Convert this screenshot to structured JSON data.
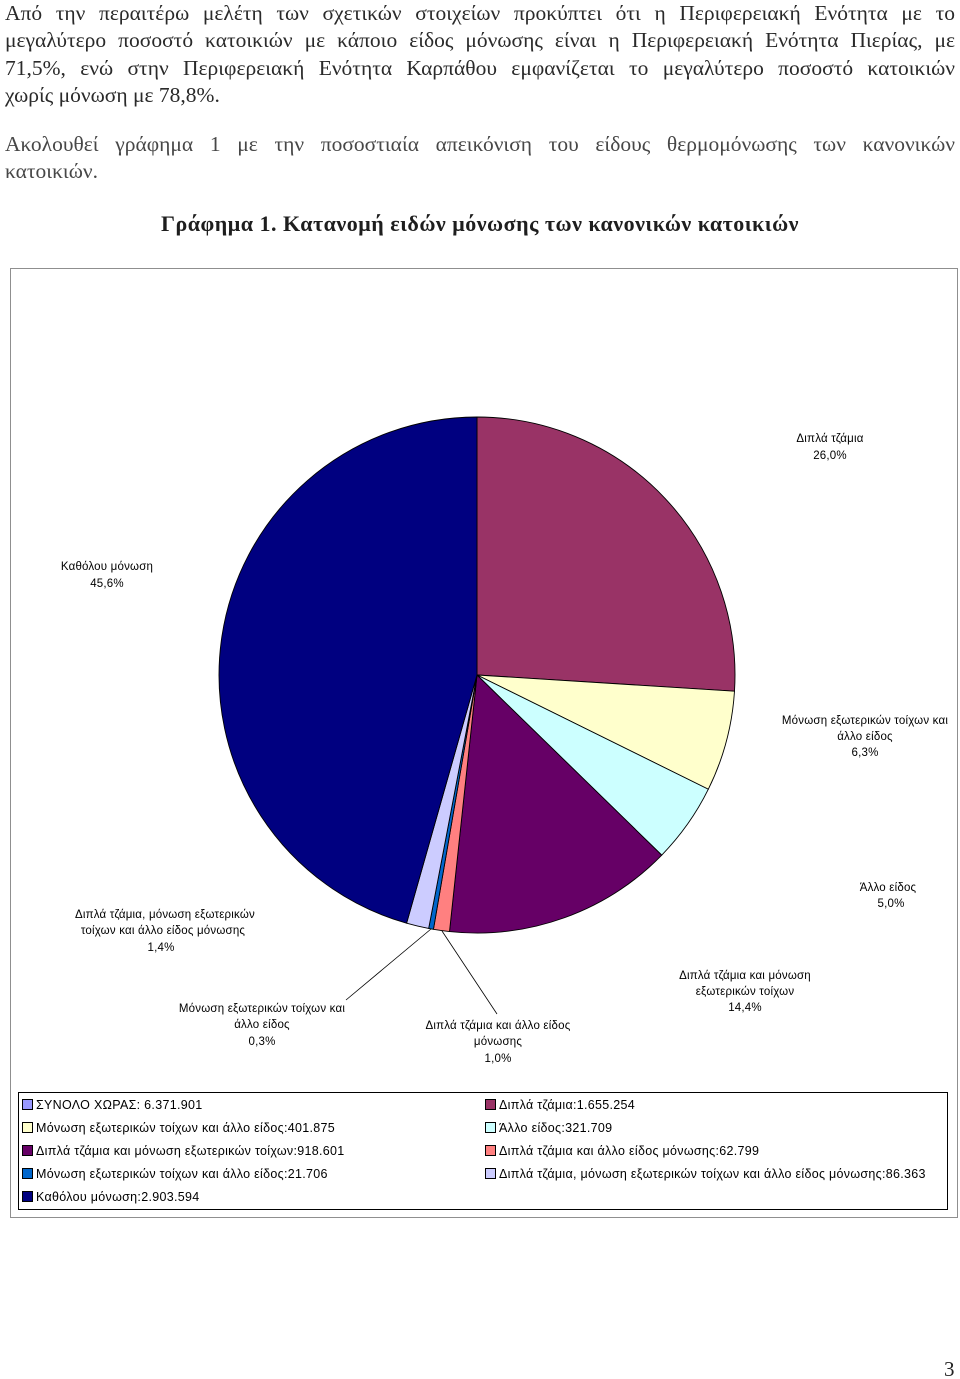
{
  "document": {
    "paragraphs": [
      {
        "lines": [
          "Από την περαιτέρω μελέτη των σχετικών στοιχείων προκύπτει ότι η Περιφερειακή Ενότητα με το",
          "μεγαλύτερο ποσοστό κατοικιών με κάποιο είδος μόνωσης είναι η Περιφερειακή Ενότητα Πιερίας, με",
          "71,5%, ενώ στην Περιφερειακή Ενότητα Καρπάθου εμφανίζεται το μεγαλύτερο ποσοστό κατοικιών",
          "χωρίς μόνωση με 78,8%."
        ]
      },
      {
        "lines": [
          "Ακολουθεί γράφημα 1 με την ποσοστιαία απεικόνιση του είδους θερμομόνωσης των κανονικών",
          "κατοικιών."
        ]
      }
    ],
    "caption": "Γράφημα 1. Κατανομή ειδών μόνωσης των κανονικών κατοικιών",
    "page_number": "3"
  },
  "chart_data": {
    "type": "pie",
    "slices": [
      {
        "label_lines": [
          "Διπλά τζάμια"
        ],
        "percent_label": "26,0%",
        "value": 26.0,
        "color": "#993366"
      },
      {
        "label_lines": [
          "Μόνωση εξωτερικών τοίχων και",
          "άλλο είδος"
        ],
        "percent_label": "6,3%",
        "value": 6.3,
        "color": "#FFFFCC"
      },
      {
        "label_lines": [
          "Άλλο είδος"
        ],
        "percent_label": "5,0%",
        "value": 5.0,
        "color": "#CCFFFF"
      },
      {
        "label_lines": [
          "Διπλά τζάμια και μόνωση",
          "εξωτερικών τοίχων"
        ],
        "percent_label": "14,4%",
        "value": 14.4,
        "color": "#660066"
      },
      {
        "label_lines": [
          "Διπλά τζάμια και άλλο είδος",
          "μόνωσης"
        ],
        "percent_label": "1,0%",
        "value": 1.0,
        "color": "#FF8080"
      },
      {
        "label_lines": [
          "Μόνωση εξωτερικών τοίχων και",
          "άλλο είδος"
        ],
        "percent_label": "0,3%",
        "value": 0.3,
        "color": "#0066CC"
      },
      {
        "label_lines": [
          "Διπλά τζάμια, μόνωση εξωτερικών",
          "τοίχων και άλλο είδος μόνωσης"
        ],
        "percent_label": "1,4%",
        "value": 1.4,
        "color": "#CCCCFF"
      },
      {
        "label_lines": [
          "Καθόλου μόνωση"
        ],
        "percent_label": "45,6%",
        "value": 45.6,
        "color": "#000080"
      }
    ],
    "legend": [
      {
        "text": "ΣΥΝΟΛΟ ΧΩΡΑΣ: 6.371.901",
        "color": "#9999FF"
      },
      {
        "text": "Διπλά τζάμια:1.655.254",
        "color": "#993366"
      },
      {
        "text": "Μόνωση εξωτερικών τοίχων και άλλο είδος:401.875",
        "color": "#FFFFCC"
      },
      {
        "text": "Άλλο είδος:321.709",
        "color": "#CCFFFF"
      },
      {
        "text": "Διπλά τζάμια και μόνωση εξωτερικών τοίχων:918.601",
        "color": "#660066"
      },
      {
        "text": "Διπλά τζάμια και άλλο είδος μόνωσης:62.799",
        "color": "#FF8080"
      },
      {
        "text": "Μόνωση εξωτερικών τοίχων και άλλο είδος:21.706",
        "color": "#0066CC"
      },
      {
        "text": "Διπλά τζάμια, μόνωση εξωτερικών τοίχων και άλλο είδος μόνωσης:86.363",
        "color": "#CCCCFF"
      },
      {
        "text": "Καθόλου μόνωση:2.903.594",
        "color": "#000080"
      }
    ],
    "legend_placement": "bottom"
  }
}
